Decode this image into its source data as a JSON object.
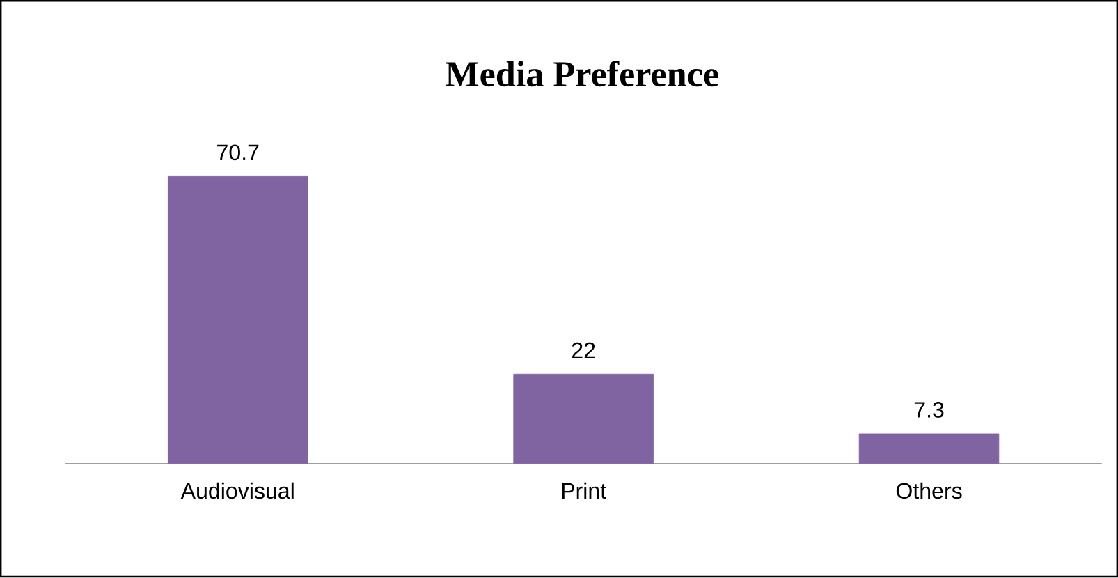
{
  "chart_data": {
    "type": "bar",
    "title": "Media Preference",
    "categories": [
      "Audiovisual",
      "Print",
      "Others"
    ],
    "values": [
      70.7,
      22,
      7.3
    ],
    "color": "#8064a2",
    "data_labels": true
  }
}
